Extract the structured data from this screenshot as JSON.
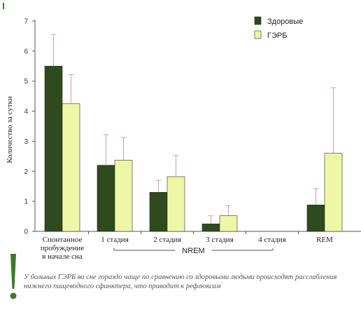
{
  "colors": {
    "healthy": "#2f4a1c",
    "gerd": "#eef7a6",
    "accent": "#3f7a2a",
    "error": "#c9a3aa"
  },
  "chart_data": {
    "type": "bar",
    "ylabel": "Количество за сутки",
    "ylim": [
      0,
      7
    ],
    "yticks": [
      "0",
      "1",
      "2",
      "3",
      "4",
      "5",
      "6",
      "7"
    ],
    "legend_position": "top-right",
    "categories": [
      "Спонтанное пробуждение в начале сна",
      "1 стадия",
      "2 стадия",
      "3 стадия",
      "4 стадия",
      "REM"
    ],
    "category_lines": [
      [
        "Спонтанное",
        "пробуждение",
        "в начале сна"
      ],
      [
        "1 стадия"
      ],
      [
        "2 стадия"
      ],
      [
        "3 стадия"
      ],
      [
        "4 стадия"
      ],
      [
        "REM"
      ]
    ],
    "series": [
      {
        "name": "Здоровые",
        "values": [
          5.5,
          2.2,
          1.3,
          0.25,
          0.0,
          0.88
        ],
        "errors_upper": [
          6.55,
          3.22,
          1.7,
          0.52,
          null,
          1.42
        ]
      },
      {
        "name": "ГЭРБ",
        "values": [
          4.25,
          2.37,
          1.82,
          0.52,
          0.0,
          2.6
        ],
        "errors_upper": [
          5.22,
          3.13,
          2.52,
          0.86,
          null,
          4.78
        ]
      }
    ],
    "group_label": "NREM",
    "group_span": [
      "1 стадия",
      "4 стадия"
    ]
  },
  "note": {
    "text": "У больных ГЭРБ во сне гораздо чаще по сравнению со здоровыми людьми происходят расслабления нижнего пищеводного сфинктера, что приводит к рефлюксам"
  }
}
